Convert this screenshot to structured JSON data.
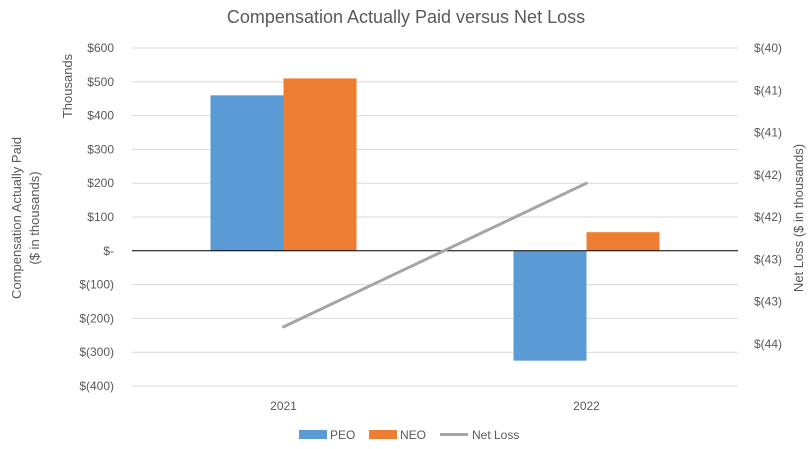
{
  "chart_data": {
    "type": "bar",
    "title": "Compensation Actually Paid versus Net Loss",
    "categories": [
      "2021",
      "2022"
    ],
    "series": [
      {
        "name": "PEO",
        "kind": "bar",
        "axis": "left",
        "color": "#5B9BD5",
        "values": [
          460,
          -325
        ]
      },
      {
        "name": "NEO",
        "kind": "bar",
        "axis": "left",
        "color": "#ED7D31",
        "values": [
          510,
          55
        ]
      },
      {
        "name": "Net Loss",
        "kind": "line",
        "axis": "right",
        "color": "#A5A5A5",
        "values": [
          -43.3,
          -41.6
        ]
      }
    ],
    "left_axis": {
      "title_line1": "Compensation Actually Paid",
      "title_line2": "($ in thousands)",
      "units_label": "Thousands",
      "ylim": [
        -400,
        600
      ],
      "ticks": [
        {
          "value": 600,
          "label": "$600"
        },
        {
          "value": 500,
          "label": "$500"
        },
        {
          "value": 400,
          "label": "$400"
        },
        {
          "value": 300,
          "label": "$300"
        },
        {
          "value": 200,
          "label": "$200"
        },
        {
          "value": 100,
          "label": "$100"
        },
        {
          "value": 0,
          "label": "$-"
        },
        {
          "value": -100,
          "label": "$(100)"
        },
        {
          "value": -200,
          "label": "$(200)"
        },
        {
          "value": -300,
          "label": "$(300)"
        },
        {
          "value": -400,
          "label": "$(400)"
        }
      ]
    },
    "right_axis": {
      "title": "Net Loss ($ in thousands)",
      "ylim": [
        -44,
        -40
      ],
      "ticks": [
        {
          "value": -40,
          "label": "$(40)"
        },
        {
          "value": -40.5,
          "label": "$(41)"
        },
        {
          "value": -41,
          "label": "$(41)"
        },
        {
          "value": -41.5,
          "label": "$(42)"
        },
        {
          "value": -42,
          "label": "$(42)"
        },
        {
          "value": -42.5,
          "label": "$(43)"
        },
        {
          "value": -43,
          "label": "$(43)"
        },
        {
          "value": -43.5,
          "label": "$(44)"
        }
      ]
    },
    "grid": true,
    "legend_position": "bottom"
  }
}
